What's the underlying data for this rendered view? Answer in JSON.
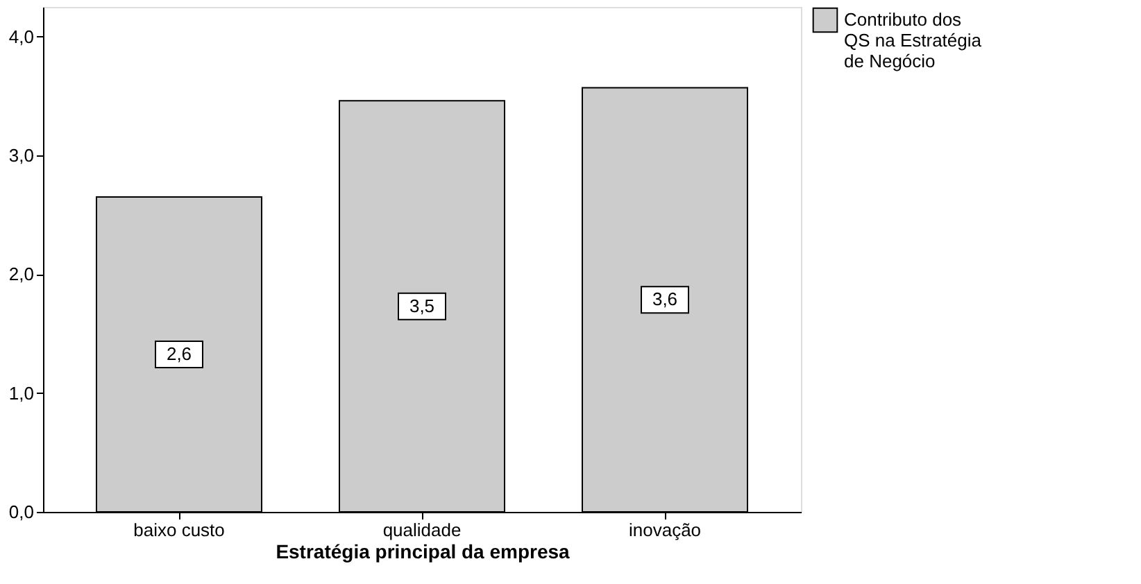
{
  "chart_data": {
    "type": "bar",
    "xlabel": "Estratégia principal da empresa",
    "categories": [
      "baixo custo",
      "qualidade",
      "inovação"
    ],
    "series": [
      {
        "name": "Contributo dos QS na Estratégia de Negócio",
        "color": "#cccccc",
        "values": [
          2.65,
          3.46,
          3.57
        ],
        "value_labels": [
          "2,6",
          "3,5",
          "3,6"
        ]
      }
    ],
    "ylim": [
      0,
      4.25
    ],
    "yticks": [
      {
        "value": 0,
        "label": "0,0"
      },
      {
        "value": 1,
        "label": "1,0"
      },
      {
        "value": 2,
        "label": "2,0"
      },
      {
        "value": 3,
        "label": "3,0"
      },
      {
        "value": 4,
        "label": "4,0"
      }
    ],
    "grid": false,
    "legend": "top right"
  }
}
